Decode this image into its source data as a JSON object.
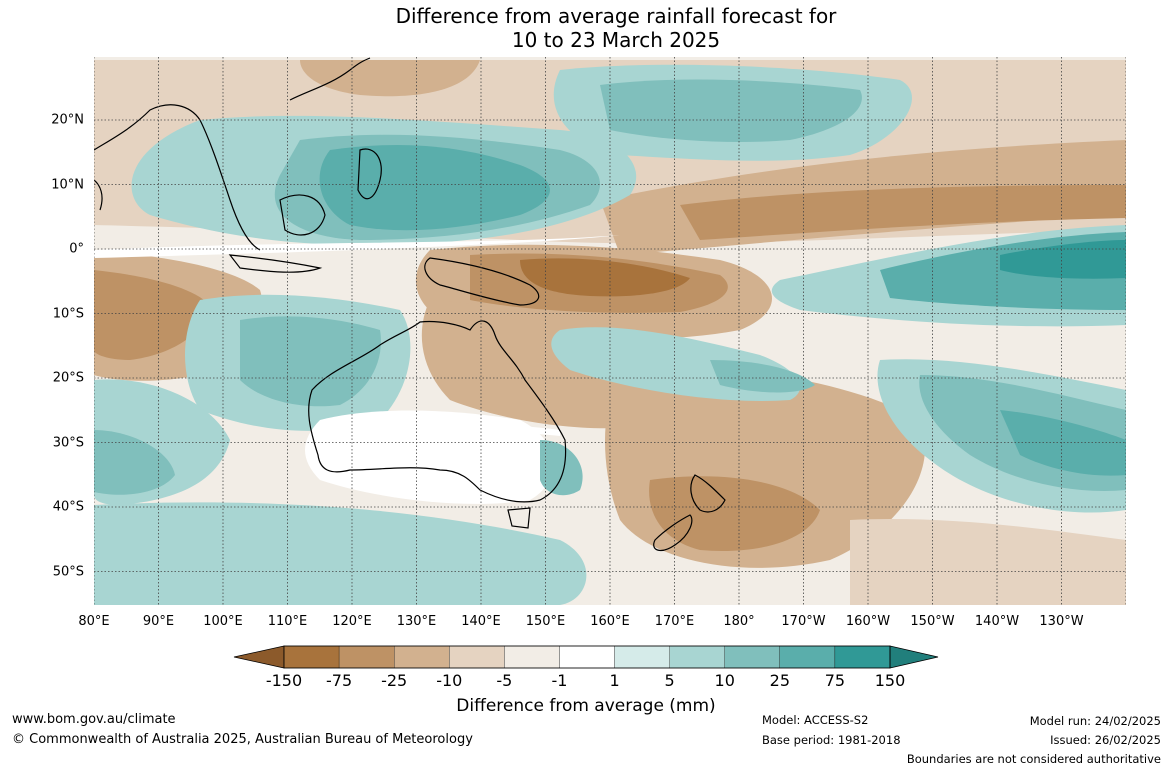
{
  "title_line1": "Difference from average rainfall forecast for",
  "title_line2": "10 to 23 March 2025",
  "lon_labels": [
    "80°E",
    "90°E",
    "100°E",
    "110°E",
    "120°E",
    "130°E",
    "140°E",
    "150°E",
    "160°E",
    "170°E",
    "180°",
    "170°W",
    "160°W",
    "150°W",
    "140°W",
    "130°W"
  ],
  "lat_labels": [
    "20°N",
    "10°N",
    "0°",
    "10°S",
    "20°S",
    "30°S",
    "40°S",
    "50°S"
  ],
  "colorbar": {
    "title": "Difference from average (mm)",
    "labels": [
      "-150",
      "-75",
      "-25",
      "-10",
      "-5",
      "-1",
      "1",
      "5",
      "10",
      "25",
      "75",
      "150"
    ],
    "colors": [
      "#a8733c",
      "#be9265",
      "#d2b18f",
      "#e5d3c1",
      "#f2ede6",
      "#ffffff",
      "#d5ebe9",
      "#a8d5d2",
      "#80bfbc",
      "#5aaeab",
      "#309996",
      "#217f7c"
    ]
  },
  "footer": {
    "website": "www.bom.gov.au/climate",
    "copyright": "© Commonwealth of Australia 2025, Australian Bureau of Meteorology",
    "model": "Model: ACCESS-S2",
    "base_period": "Base period: 1981-2018",
    "model_run": "Model run: 24/02/2025",
    "issued": "Issued: 26/02/2025",
    "disclaimer": "Boundaries are not considered authoritative"
  }
}
